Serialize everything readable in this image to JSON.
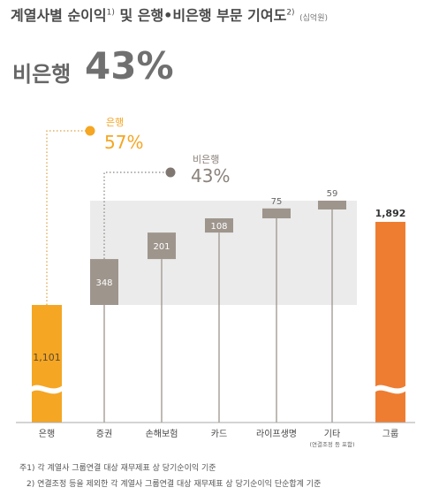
{
  "header": {
    "title": "계열사별 순이익",
    "title_sup": "1)",
    "title_cont": " 및 은행•비은행 부문 기여도",
    "title_sup2": "2)",
    "unit": "(십억원)",
    "headline_label": "비은행",
    "headline_value": "43%"
  },
  "footnotes": [
    "주1) 각 계열사 그룹연결 대상 재무제표 상 당기순이익 기준",
    "2) 연결조정 등을 제외한 각 계열사 그룹연결 대상 재무제표 상 당기순이익 단순합계 기준"
  ],
  "colors": {
    "bank": "#f5a623",
    "nonbank": "#9e958d",
    "group": "#ee7d32",
    "band": "#ebebeb"
  },
  "chart_data": {
    "type": "bar",
    "subtype": "waterfall",
    "categories": [
      "은행",
      "증권",
      "손해보험",
      "카드",
      "라이프생명",
      "기타",
      "그룹"
    ],
    "category_notes": [
      "",
      "",
      "",
      "",
      "",
      "(연결조정 등 포함)",
      ""
    ],
    "values": [
      1101,
      348,
      201,
      108,
      75,
      59,
      1892
    ],
    "value_labels": [
      "1,101",
      "348",
      "201",
      "108",
      "75",
      "59",
      "1,892"
    ],
    "share_annotations": [
      {
        "name": "은행",
        "value": "57%"
      },
      {
        "name": "비은행",
        "value": "43%"
      }
    ],
    "axis_break": true
  }
}
